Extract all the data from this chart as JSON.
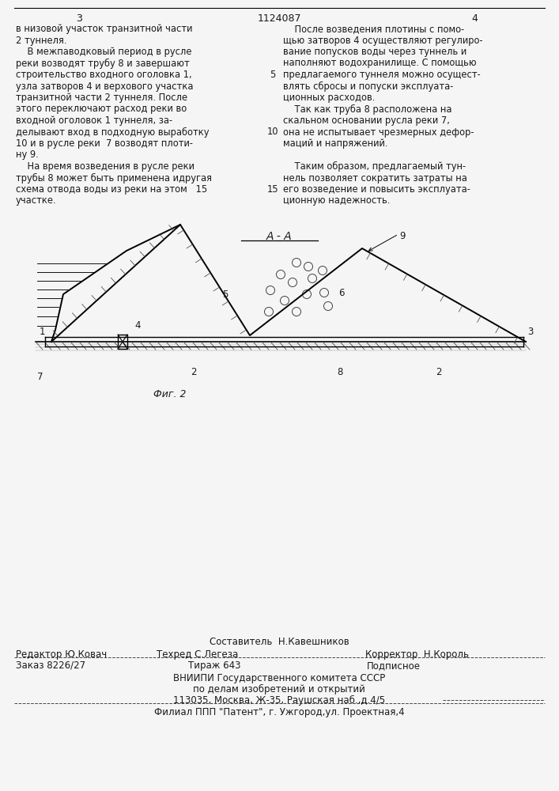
{
  "bg_color": "#f5f5f5",
  "page_number_left": "3",
  "page_number_center": "1124087",
  "page_number_right": "4",
  "col_left_lines": [
    "в низовой участок транзитной части",
    "2 туннеля.",
    "    В межпаводковый период в русле",
    "реки возводят трубу 8 и завершают",
    "строительство входного оголовка 1,",
    "узла затворов 4 и верхового участка",
    "транзитной части 2 туннеля. После",
    "этого переключают расход реки во",
    "входной оголовок 1 туннеля, за-",
    "делывают вход в подходную выработку",
    "10 и в русле реки  7 возводят плоти-",
    "ну 9.",
    "    На время возведения в русле реки",
    "трубы 8 может быть применена идругая",
    "схема отвода воды из реки на этом   15",
    "участке."
  ],
  "col_right_lines": [
    "    После возведения плотины с помо-",
    "щью затворов 4 осуществляют регулиро-",
    "вание попусков воды через туннель и",
    "наполняют водохранилище. С помощью",
    "предлагаемого туннеля можно осущест-",
    "влять сбросы и попуски эксплуата-",
    "ционных расходов.",
    "    Так как труба 8 расположена на",
    "скальном основании русла реки 7,",
    "она не испытывает чрезмерных дефор-",
    "маций и напряжений.",
    "",
    "    Таким образом, предлагаемый тун-",
    "нель позволяет сократить затраты на",
    "его возведение и повысить эксплуата-",
    "ционную надежность."
  ],
  "diagram_title": "A - A",
  "fig_label": "Фиг. 2",
  "footer_line1": "Составитель  Н.Кавешников",
  "footer_line2_left": "Редактор Ю.Ковач",
  "footer_line2_mid": "Техред С.Легеза",
  "footer_line2_right": "Корректор  Н.Король",
  "footer_order": "Заказ 8226/27",
  "footer_tirazh": "Тираж 643",
  "footer_podpisnoe": "Подписное",
  "footer_vnipi": "ВНИИПИ Государственного комитета СССР",
  "footer_po_delam": "по делам изобретений и открытий",
  "footer_address": "113035, Москва, Ж-35, Раушская наб.,д.4/5",
  "footer_filial": "Филиал ППП \"Патент\", г. Ужгород,ул. Проектная,4"
}
